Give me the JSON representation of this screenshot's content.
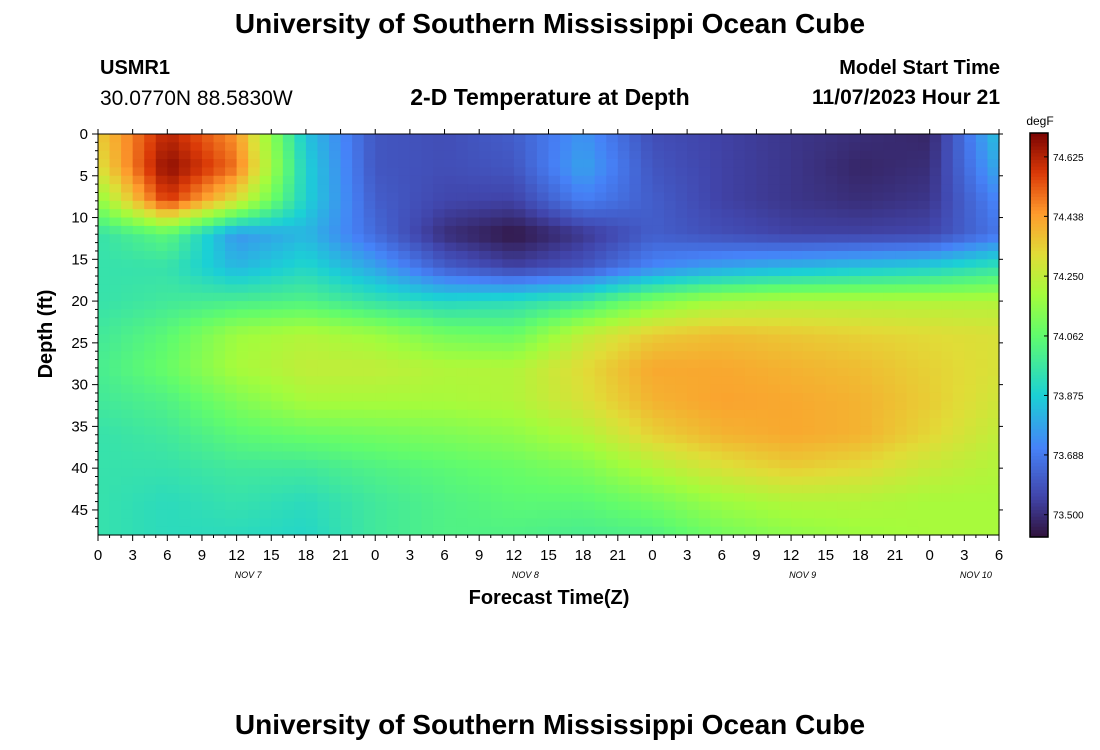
{
  "header": {
    "title": "University of Southern Mississippi Ocean Cube",
    "station": "USMR1",
    "coords": "30.0770N  88.5830W",
    "subtitle": "2-D Temperature at Depth",
    "model_start_label": "Model Start Time",
    "model_start_value": "11/07/2023 Hour 21"
  },
  "footer": {
    "title": "University of Southern Mississippi Ocean Cube"
  },
  "chart_data": {
    "type": "heatmap",
    "title": "2-D Temperature at Depth",
    "xlabel": "Forecast Time(Z)",
    "ylabel": "Depth (ft)",
    "x_ticks": [
      "0",
      "3",
      "6",
      "9",
      "12",
      "15",
      "18",
      "21",
      "0",
      "3",
      "6",
      "9",
      "12",
      "15",
      "18",
      "21",
      "0",
      "3",
      "6",
      "9",
      "12",
      "15",
      "18",
      "21",
      "0",
      "3",
      "6"
    ],
    "date_labels": [
      {
        "label": "NOV 7",
        "hour_index": 13
      },
      {
        "label": "NOV 8",
        "hour_index": 37
      },
      {
        "label": "NOV 9",
        "hour_index": 61
      },
      {
        "label": "NOV 10",
        "hour_index": 76
      }
    ],
    "x_range_hours": [
      0,
      78
    ],
    "y_ticks": [
      0,
      5,
      10,
      15,
      20,
      25,
      30,
      35,
      40,
      45
    ],
    "ylim": [
      0,
      48
    ],
    "colorbar": {
      "unit": "degF",
      "ticks": [
        "74.625",
        "74.438",
        "74.250",
        "74.062",
        "73.875",
        "73.688",
        "73.500"
      ],
      "range": [
        73.43,
        74.7
      ]
    },
    "z_hours": [
      0,
      6,
      12,
      18,
      24,
      30,
      36,
      42,
      48,
      54,
      60,
      66,
      72,
      78
    ],
    "z_depths": [
      0,
      4,
      8,
      12,
      16,
      20,
      24,
      28,
      32,
      36,
      40,
      44,
      48
    ],
    "z_values": [
      [
        74.35,
        74.62,
        74.45,
        73.85,
        73.6,
        73.58,
        73.62,
        73.75,
        73.58,
        73.55,
        73.52,
        73.5,
        73.48,
        73.85
      ],
      [
        74.3,
        74.68,
        74.5,
        73.88,
        73.6,
        73.58,
        73.6,
        73.78,
        73.6,
        73.55,
        73.52,
        73.48,
        73.5,
        73.8
      ],
      [
        74.15,
        74.58,
        74.3,
        73.88,
        73.62,
        73.56,
        73.55,
        73.7,
        73.62,
        73.55,
        73.52,
        73.5,
        73.52,
        73.72
      ],
      [
        73.95,
        74.05,
        73.75,
        73.82,
        73.65,
        73.5,
        73.44,
        73.52,
        73.62,
        73.58,
        73.55,
        73.55,
        73.56,
        73.68
      ],
      [
        73.95,
        73.95,
        73.82,
        73.9,
        73.78,
        73.62,
        73.55,
        73.6,
        73.72,
        73.78,
        73.82,
        73.85,
        73.88,
        73.95
      ],
      [
        73.95,
        73.98,
        74.0,
        74.02,
        73.95,
        73.9,
        73.92,
        73.98,
        74.12,
        74.2,
        74.22,
        74.22,
        74.22,
        74.22
      ],
      [
        73.98,
        74.05,
        74.18,
        74.22,
        74.18,
        74.1,
        74.08,
        74.25,
        74.35,
        74.38,
        74.36,
        74.34,
        74.32,
        74.3
      ],
      [
        74.0,
        74.08,
        74.2,
        74.25,
        74.25,
        74.22,
        74.22,
        74.32,
        74.42,
        74.42,
        74.4,
        74.38,
        74.34,
        74.3
      ],
      [
        73.98,
        74.02,
        74.12,
        74.2,
        74.2,
        74.2,
        74.22,
        74.3,
        74.4,
        74.43,
        74.42,
        74.4,
        74.35,
        74.28
      ],
      [
        73.95,
        73.98,
        74.05,
        74.08,
        74.1,
        74.12,
        74.15,
        74.22,
        74.34,
        74.4,
        74.42,
        74.4,
        74.33,
        74.25
      ],
      [
        73.95,
        73.95,
        73.98,
        73.98,
        74.02,
        74.05,
        74.08,
        74.12,
        74.22,
        74.3,
        74.35,
        74.32,
        74.26,
        74.22
      ],
      [
        73.95,
        73.92,
        73.95,
        73.92,
        73.98,
        74.02,
        74.05,
        74.05,
        74.1,
        74.18,
        74.22,
        74.22,
        74.2,
        74.2
      ],
      [
        73.95,
        73.92,
        73.92,
        73.9,
        73.98,
        74.02,
        74.02,
        74.0,
        74.02,
        74.1,
        74.15,
        74.18,
        74.2,
        74.2
      ]
    ]
  }
}
